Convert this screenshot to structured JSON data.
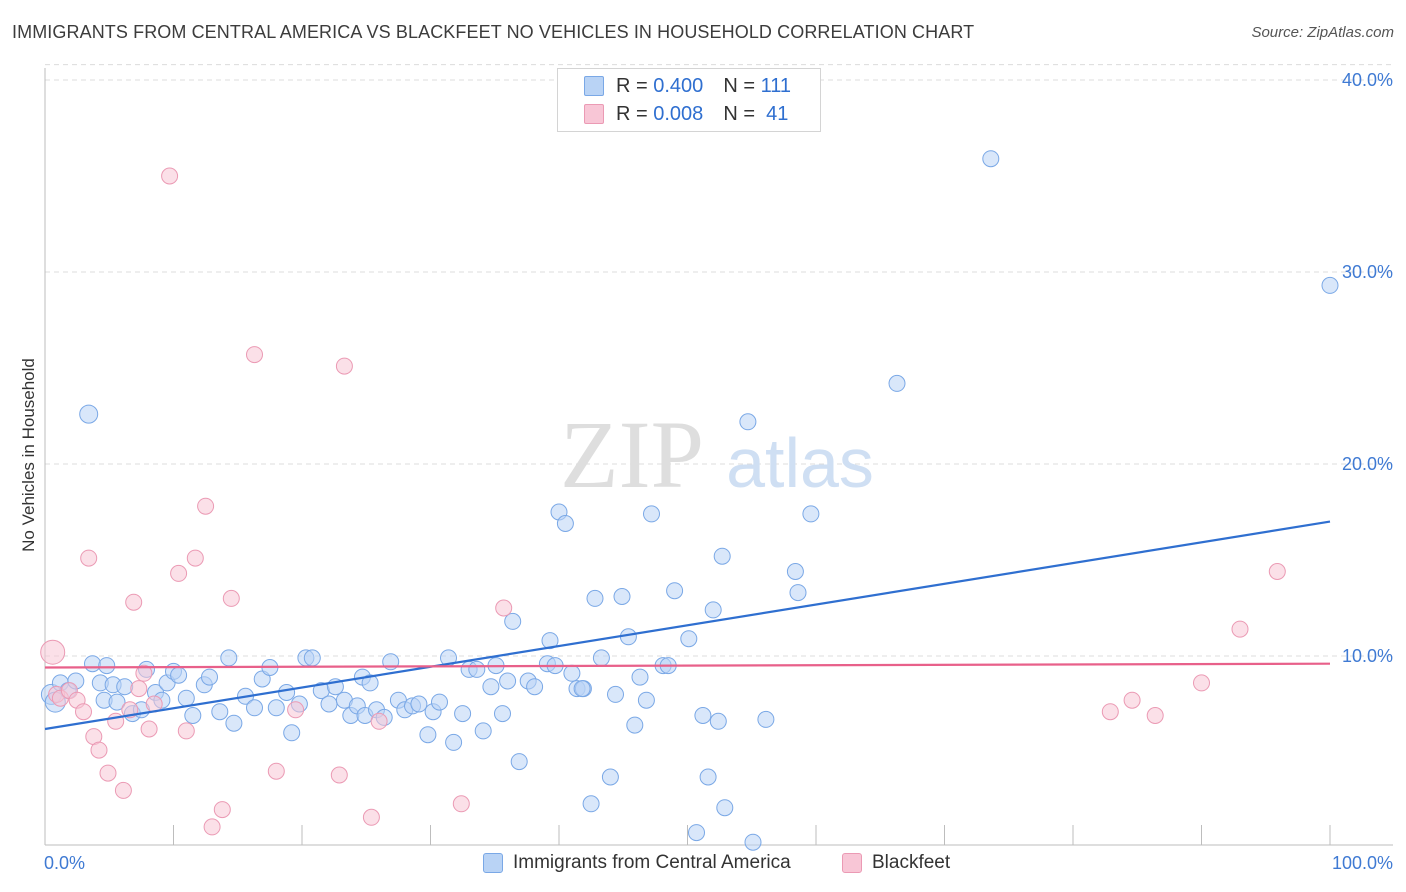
{
  "title": "IMMIGRANTS FROM CENTRAL AMERICA VS BLACKFEET NO VEHICLES IN HOUSEHOLD CORRELATION CHART",
  "source": "Source: ZipAtlas.com",
  "watermark": {
    "zip": "ZIP",
    "atlas": "atlas"
  },
  "colors": {
    "blue": "#2f6fd0",
    "blue_fill": "#b9d3f5",
    "blue_stroke": "#7aa8e6",
    "pink": "#e8608a",
    "pink_fill": "#f8c6d6",
    "pink_stroke": "#eb9ab4",
    "grid": "#dcdcdc",
    "tick_label": "#3f7ad3"
  },
  "legend_top": [
    {
      "r_label": "R =",
      "r_value": "0.400",
      "n_label": "N =",
      "n_value": "111"
    },
    {
      "r_label": "R =",
      "r_value": "0.008",
      "n_label": "N =",
      "n_value": "41"
    }
  ],
  "legend_bottom": [
    "Immigrants from Central America",
    "Blackfeet"
  ],
  "chart_data": {
    "type": "scatter",
    "title": "IMMIGRANTS FROM CENTRAL AMERICA VS BLACKFEET NO VEHICLES IN HOUSEHOLD CORRELATION CHART",
    "xlabel": "",
    "ylabel": "No Vehicles in Household",
    "xlim": [
      0,
      100
    ],
    "ylim": [
      0,
      42
    ],
    "x_tick_labels": [
      "0.0%",
      "100.0%"
    ],
    "y_ticks": [
      10,
      20,
      30,
      40
    ],
    "y_tick_labels": [
      "10.0%",
      "20.0%",
      "30.0%",
      "40.0%"
    ],
    "grid": true,
    "legend_placement": "top-center",
    "series": [
      {
        "name": "Immigrants from Central America",
        "r": 0.4,
        "n": 111,
        "trend": [
          [
            0,
            6.2
          ],
          [
            100,
            17.0
          ]
        ],
        "points": [
          [
            0.5,
            8.0,
            9
          ],
          [
            0.8,
            7.6,
            9
          ],
          [
            1.2,
            8.6,
            7
          ],
          [
            1.8,
            8.2,
            7
          ],
          [
            2.4,
            8.7,
            7
          ],
          [
            3.4,
            22.6,
            8
          ],
          [
            3.7,
            9.6,
            7
          ],
          [
            4.3,
            8.6,
            7
          ],
          [
            4.6,
            7.7,
            7
          ],
          [
            4.8,
            9.5,
            7
          ],
          [
            5.3,
            8.5,
            7
          ],
          [
            5.6,
            7.6,
            7
          ],
          [
            6.2,
            8.4,
            7
          ],
          [
            6.8,
            7.0,
            7
          ],
          [
            7.5,
            7.2,
            7
          ],
          [
            7.9,
            9.3,
            7
          ],
          [
            8.6,
            8.1,
            7
          ],
          [
            9.1,
            7.7,
            7
          ],
          [
            9.5,
            8.6,
            7
          ],
          [
            10.0,
            9.2,
            7
          ],
          [
            10.4,
            9.0,
            7
          ],
          [
            11.0,
            7.8,
            7
          ],
          [
            11.5,
            6.9,
            7
          ],
          [
            12.4,
            8.5,
            7
          ],
          [
            12.8,
            8.9,
            7
          ],
          [
            13.6,
            7.1,
            7
          ],
          [
            14.3,
            9.9,
            7
          ],
          [
            14.7,
            6.5,
            7
          ],
          [
            15.6,
            7.9,
            7
          ],
          [
            16.3,
            7.3,
            7
          ],
          [
            16.9,
            8.8,
            7
          ],
          [
            17.5,
            9.4,
            7
          ],
          [
            18.0,
            7.3,
            7
          ],
          [
            18.8,
            8.1,
            7
          ],
          [
            19.2,
            6.0,
            7
          ],
          [
            19.8,
            7.5,
            7
          ],
          [
            20.3,
            9.9,
            7
          ],
          [
            20.8,
            9.9,
            7
          ],
          [
            21.5,
            8.2,
            7
          ],
          [
            22.1,
            7.5,
            7
          ],
          [
            22.6,
            8.4,
            7
          ],
          [
            23.3,
            7.7,
            7
          ],
          [
            23.8,
            6.9,
            7
          ],
          [
            24.3,
            7.4,
            7
          ],
          [
            24.9,
            6.9,
            7
          ],
          [
            24.7,
            8.9,
            7
          ],
          [
            25.3,
            8.6,
            7
          ],
          [
            25.8,
            7.2,
            7
          ],
          [
            26.4,
            6.8,
            7
          ],
          [
            26.9,
            9.7,
            7
          ],
          [
            27.5,
            7.7,
            7
          ],
          [
            28.0,
            7.2,
            7
          ],
          [
            28.6,
            7.4,
            7
          ],
          [
            29.1,
            7.5,
            7
          ],
          [
            29.8,
            5.9,
            7
          ],
          [
            30.2,
            7.1,
            7
          ],
          [
            30.7,
            7.6,
            7
          ],
          [
            31.4,
            9.9,
            7
          ],
          [
            31.8,
            5.5,
            7
          ],
          [
            32.5,
            7.0,
            7
          ],
          [
            33.0,
            9.3,
            7
          ],
          [
            33.6,
            9.3,
            7
          ],
          [
            34.1,
            6.1,
            7
          ],
          [
            34.7,
            8.4,
            7
          ],
          [
            35.1,
            9.5,
            7
          ],
          [
            35.6,
            7.0,
            7
          ],
          [
            36.0,
            8.7,
            7
          ],
          [
            36.4,
            11.8,
            7
          ],
          [
            36.9,
            4.5,
            7
          ],
          [
            37.6,
            8.7,
            7
          ],
          [
            38.1,
            8.4,
            7
          ],
          [
            39.1,
            9.6,
            7
          ],
          [
            39.3,
            10.8,
            7
          ],
          [
            39.7,
            9.5,
            7
          ],
          [
            40.0,
            17.5,
            7
          ],
          [
            40.5,
            16.9,
            7
          ],
          [
            41.0,
            9.1,
            7
          ],
          [
            41.4,
            8.3,
            7
          ],
          [
            41.9,
            8.3,
            7
          ],
          [
            41.8,
            8.3,
            7
          ],
          [
            42.5,
            2.3,
            7
          ],
          [
            42.8,
            13.0,
            7
          ],
          [
            43.3,
            9.9,
            7
          ],
          [
            44.0,
            3.7,
            7
          ],
          [
            44.4,
            8.0,
            7
          ],
          [
            44.9,
            13.1,
            7
          ],
          [
            45.4,
            11.0,
            7
          ],
          [
            45.9,
            6.4,
            7
          ],
          [
            46.3,
            8.9,
            7
          ],
          [
            46.8,
            7.7,
            7
          ],
          [
            47.2,
            17.4,
            7
          ],
          [
            48.1,
            9.5,
            7
          ],
          [
            48.5,
            9.5,
            7
          ],
          [
            49.0,
            13.4,
            7
          ],
          [
            50.1,
            10.9,
            7
          ],
          [
            50.7,
            0.8,
            7
          ],
          [
            51.2,
            6.9,
            7
          ],
          [
            51.6,
            3.7,
            7
          ],
          [
            52.0,
            12.4,
            7
          ],
          [
            52.4,
            6.6,
            7
          ],
          [
            52.7,
            15.2,
            7
          ],
          [
            52.9,
            2.1,
            7
          ],
          [
            54.7,
            22.2,
            7
          ],
          [
            55.1,
            0.3,
            7
          ],
          [
            56.1,
            6.7,
            7
          ],
          [
            58.4,
            14.4,
            7
          ],
          [
            58.6,
            13.3,
            7
          ],
          [
            59.6,
            17.4,
            7
          ],
          [
            66.3,
            24.2,
            7
          ],
          [
            73.6,
            35.9,
            7
          ],
          [
            100.0,
            29.3,
            7
          ]
        ]
      },
      {
        "name": "Blackfeet",
        "r": 0.008,
        "n": 41,
        "trend": [
          [
            0,
            9.4
          ],
          [
            100,
            9.6
          ]
        ],
        "points": [
          [
            0.6,
            10.2,
            11
          ],
          [
            0.9,
            8.0,
            7
          ],
          [
            1.2,
            7.8,
            7
          ],
          [
            1.9,
            8.2,
            7
          ],
          [
            2.5,
            7.7,
            7
          ],
          [
            3.0,
            7.1,
            7
          ],
          [
            3.4,
            15.1,
            7
          ],
          [
            3.8,
            5.8,
            7
          ],
          [
            4.2,
            5.1,
            7
          ],
          [
            4.9,
            3.9,
            7
          ],
          [
            5.5,
            6.6,
            7
          ],
          [
            6.1,
            3.0,
            7
          ],
          [
            6.6,
            7.2,
            7
          ],
          [
            6.9,
            12.8,
            7
          ],
          [
            7.3,
            8.3,
            7
          ],
          [
            7.7,
            9.1,
            7
          ],
          [
            8.1,
            6.2,
            7
          ],
          [
            8.5,
            7.5,
            7
          ],
          [
            9.7,
            35.0,
            7
          ],
          [
            10.4,
            14.3,
            7
          ],
          [
            11.0,
            6.1,
            7
          ],
          [
            11.7,
            15.1,
            7
          ],
          [
            12.5,
            17.8,
            7
          ],
          [
            13.0,
            1.1,
            7
          ],
          [
            13.8,
            2.0,
            7
          ],
          [
            14.5,
            13.0,
            7
          ],
          [
            16.3,
            25.7,
            7
          ],
          [
            18.0,
            4.0,
            7
          ],
          [
            19.5,
            7.2,
            7
          ],
          [
            22.9,
            3.8,
            7
          ],
          [
            23.3,
            25.1,
            7
          ],
          [
            25.4,
            1.6,
            7
          ],
          [
            26.0,
            6.6,
            7
          ],
          [
            32.4,
            2.3,
            7
          ],
          [
            35.7,
            12.5,
            7
          ],
          [
            82.9,
            7.1,
            7
          ],
          [
            84.6,
            7.7,
            7
          ],
          [
            86.4,
            6.9,
            7
          ],
          [
            90.0,
            8.6,
            7
          ],
          [
            93.0,
            11.4,
            7
          ],
          [
            95.9,
            14.4,
            7
          ]
        ]
      }
    ]
  }
}
